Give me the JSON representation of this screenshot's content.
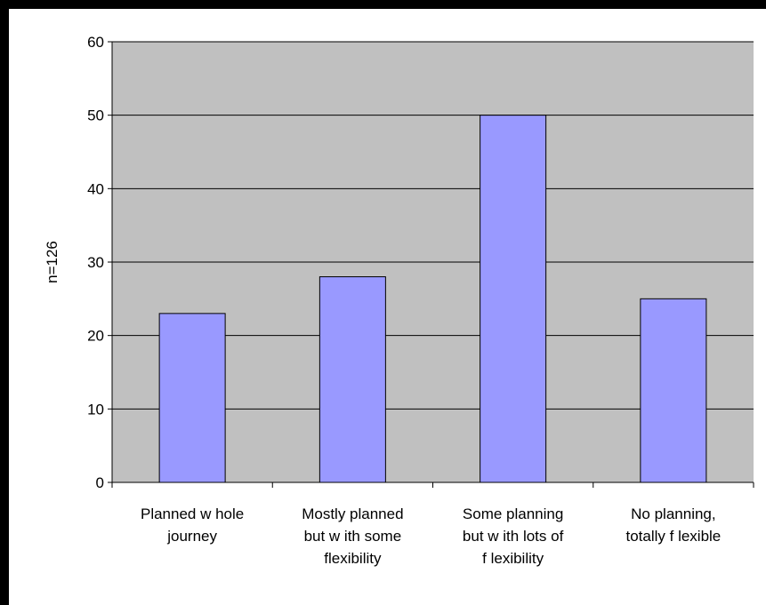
{
  "chart_data": {
    "type": "bar",
    "categories": [
      [
        "Planned w hole",
        "journey"
      ],
      [
        "Mostly planned",
        "but w ith some",
        "flexibility"
      ],
      [
        "Some planning",
        "but w ith lots of",
        "f lexibility"
      ],
      [
        "No planning,",
        "totally f lexible"
      ]
    ],
    "values": [
      23,
      28,
      50,
      25
    ],
    "ylabel": "n=126",
    "xlabel": "",
    "title": "",
    "ylim": [
      0,
      60
    ],
    "yticks": [
      0,
      10,
      20,
      30,
      40,
      50,
      60
    ],
    "grid": true,
    "legend": "none",
    "colors": {
      "bar_fill": "#9999ff",
      "bar_stroke": "#000000",
      "plot_bg": "#c0c0c0",
      "gridline": "#000000",
      "page_bg": "#ffffff",
      "frame_bg": "#000000"
    }
  }
}
